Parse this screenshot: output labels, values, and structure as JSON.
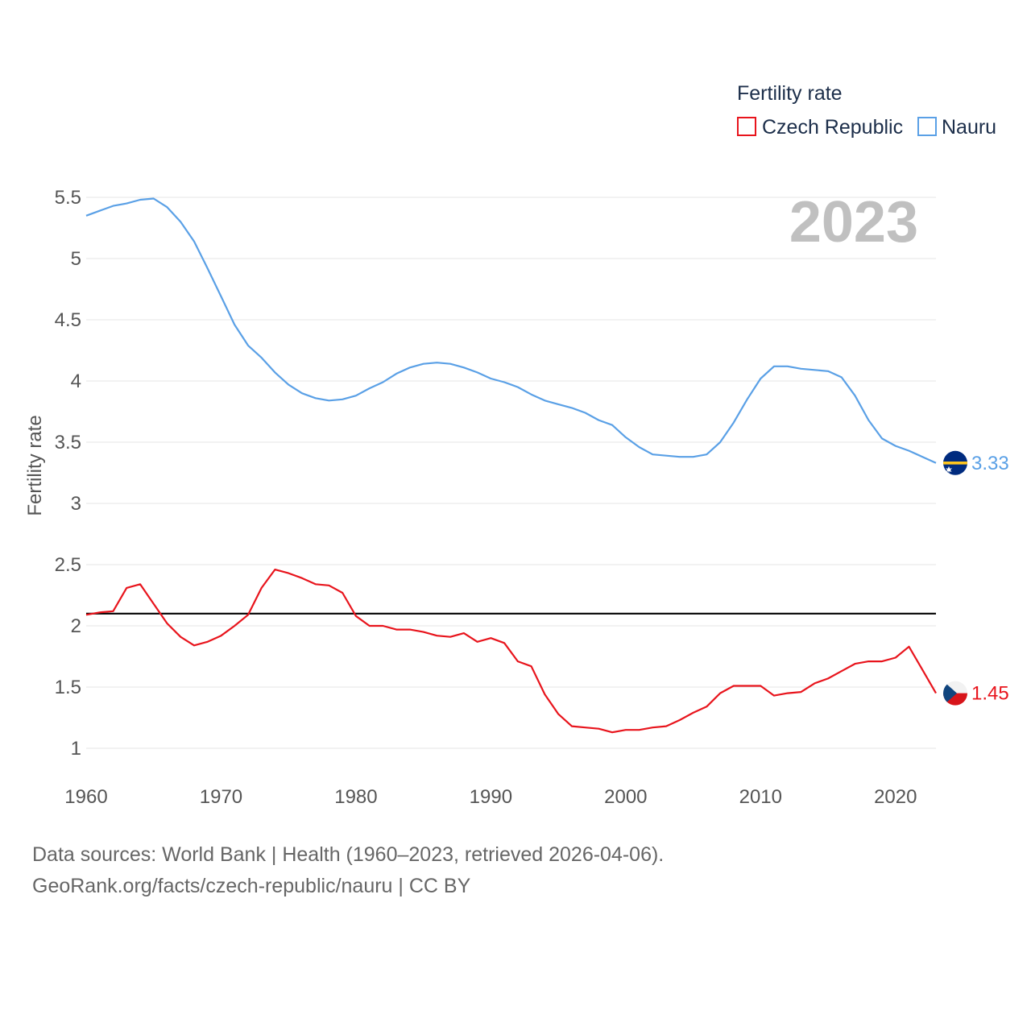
{
  "chart_data": {
    "type": "line",
    "legend_title": "Fertility rate",
    "ylabel": "Fertility rate",
    "xlabel": "",
    "ylim": [
      0.9,
      5.6
    ],
    "xlim": [
      1960,
      2023
    ],
    "yticks": [
      1,
      1.5,
      2,
      2.5,
      3,
      3.5,
      4,
      4.5,
      5,
      5.5
    ],
    "ytick_labels": [
      "1",
      "1.5",
      "2",
      "2.5",
      "3",
      "3.5",
      "4",
      "4.5",
      "5",
      "5.5"
    ],
    "xticks": [
      1960,
      1970,
      1980,
      1990,
      2000,
      2010,
      2020
    ],
    "xtick_labels": [
      "1960",
      "1970",
      "1980",
      "1990",
      "2000",
      "2010",
      "2020"
    ],
    "current_year_label": "2023",
    "reference_line": {
      "y": 2.1,
      "color": "#000000"
    },
    "grid": true,
    "legend_position": "top-right",
    "series": [
      {
        "name": "Czech Republic",
        "color": "#e8141c",
        "end_label": "1.45",
        "flag_icon": "czech-flag-icon",
        "x": [
          1960,
          1961,
          1962,
          1963,
          1964,
          1965,
          1966,
          1967,
          1968,
          1969,
          1970,
          1971,
          1972,
          1973,
          1974,
          1975,
          1976,
          1977,
          1978,
          1979,
          1980,
          1981,
          1982,
          1983,
          1984,
          1985,
          1986,
          1987,
          1988,
          1989,
          1990,
          1991,
          1992,
          1993,
          1994,
          1995,
          1996,
          1997,
          1998,
          1999,
          2000,
          2001,
          2002,
          2003,
          2004,
          2005,
          2006,
          2007,
          2008,
          2009,
          2010,
          2011,
          2012,
          2013,
          2014,
          2015,
          2016,
          2017,
          2018,
          2019,
          2020,
          2021,
          2022,
          2023
        ],
        "values": [
          2.09,
          2.11,
          2.12,
          2.31,
          2.34,
          2.18,
          2.02,
          1.91,
          1.84,
          1.87,
          1.92,
          2.0,
          2.09,
          2.31,
          2.46,
          2.43,
          2.39,
          2.34,
          2.33,
          2.27,
          2.08,
          2.0,
          2.0,
          1.97,
          1.97,
          1.95,
          1.92,
          1.91,
          1.94,
          1.87,
          1.9,
          1.86,
          1.71,
          1.67,
          1.44,
          1.28,
          1.18,
          1.17,
          1.16,
          1.13,
          1.15,
          1.15,
          1.17,
          1.18,
          1.23,
          1.29,
          1.34,
          1.45,
          1.51,
          1.51,
          1.51,
          1.43,
          1.45,
          1.46,
          1.53,
          1.57,
          1.63,
          1.69,
          1.71,
          1.71,
          1.74,
          1.83,
          1.64,
          1.45
        ]
      },
      {
        "name": "Nauru",
        "color": "#5aa0e6",
        "end_label": "3.33",
        "flag_icon": "nauru-flag-icon",
        "x": [
          1960,
          1961,
          1962,
          1963,
          1964,
          1965,
          1966,
          1967,
          1968,
          1969,
          1970,
          1971,
          1972,
          1973,
          1974,
          1975,
          1976,
          1977,
          1978,
          1979,
          1980,
          1981,
          1982,
          1983,
          1984,
          1985,
          1986,
          1987,
          1988,
          1989,
          1990,
          1991,
          1992,
          1993,
          1994,
          1995,
          1996,
          1997,
          1998,
          1999,
          2000,
          2001,
          2002,
          2003,
          2004,
          2005,
          2006,
          2007,
          2008,
          2009,
          2010,
          2011,
          2012,
          2013,
          2014,
          2015,
          2016,
          2017,
          2018,
          2019,
          2020,
          2021,
          2022,
          2023
        ],
        "values": [
          5.35,
          5.39,
          5.43,
          5.45,
          5.48,
          5.49,
          5.42,
          5.3,
          5.14,
          4.92,
          4.69,
          4.46,
          4.29,
          4.19,
          4.07,
          3.97,
          3.9,
          3.86,
          3.84,
          3.85,
          3.88,
          3.94,
          3.99,
          4.06,
          4.11,
          4.14,
          4.15,
          4.14,
          4.11,
          4.07,
          4.02,
          3.99,
          3.95,
          3.89,
          3.84,
          3.81,
          3.78,
          3.74,
          3.68,
          3.64,
          3.54,
          3.46,
          3.4,
          3.39,
          3.38,
          3.38,
          3.4,
          3.5,
          3.66,
          3.85,
          4.02,
          4.12,
          4.12,
          4.1,
          4.09,
          4.08,
          4.03,
          3.88,
          3.68,
          3.53,
          3.47,
          3.43,
          3.38,
          3.33
        ]
      }
    ]
  },
  "source": {
    "line1": "Data sources: World Bank | Health (1960–2023, retrieved 2026-04-06).",
    "line2": "GeoRank.org/facts/czech-republic/nauru | CC BY"
  }
}
